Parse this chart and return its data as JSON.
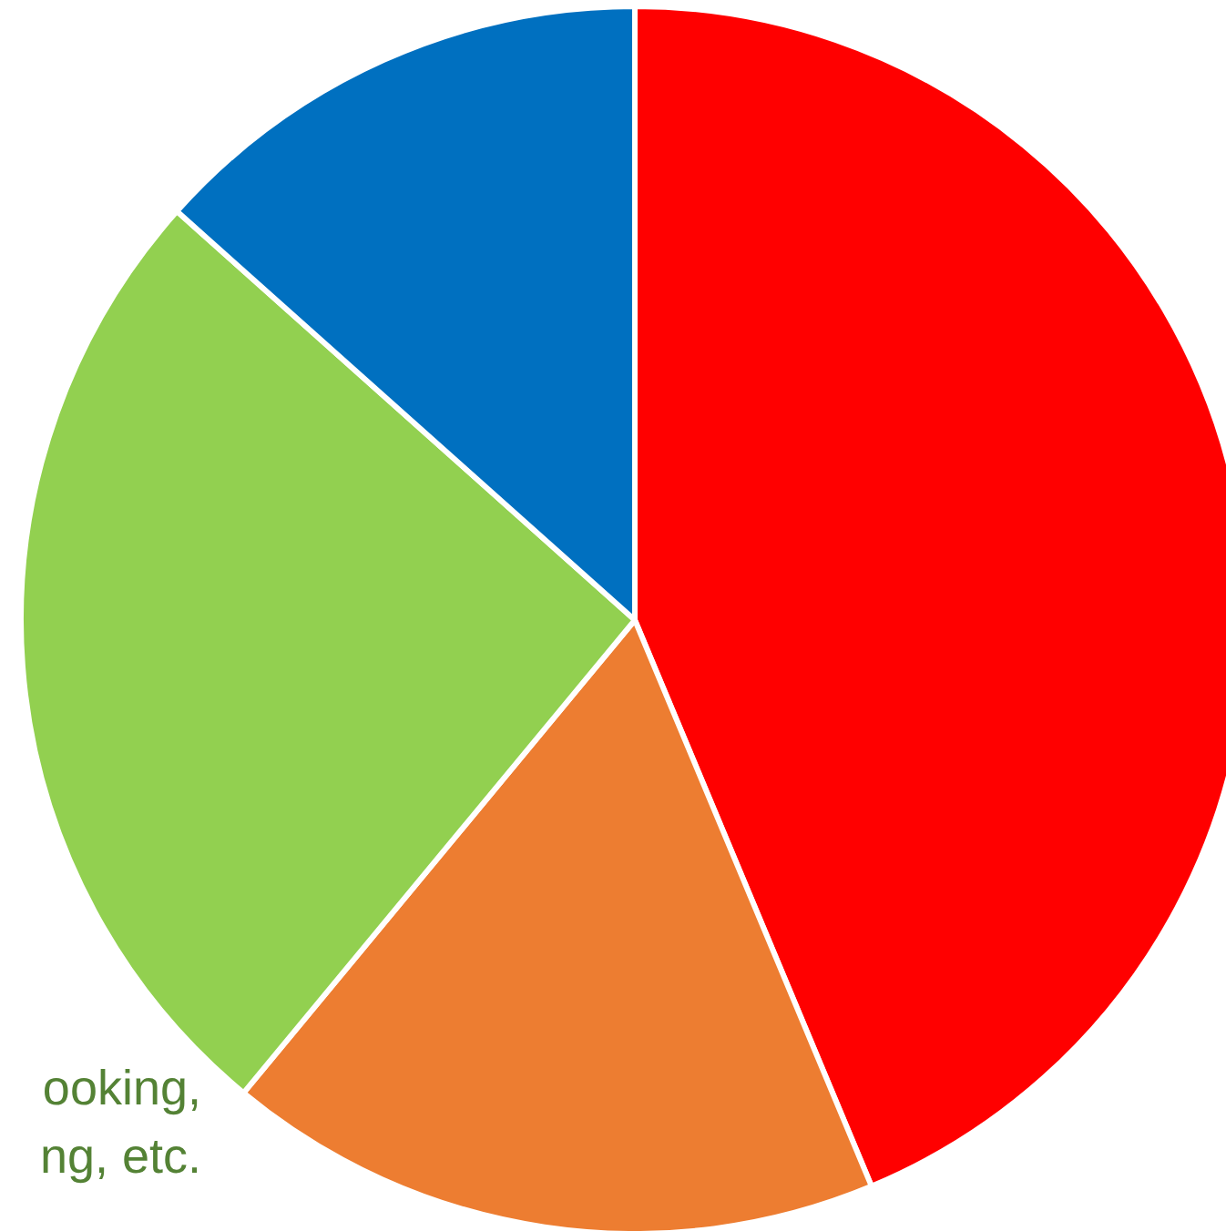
{
  "chart_data": {
    "type": "pie",
    "categories": [
      null,
      null,
      null,
      null
    ],
    "values": [
      43.7,
      17.3,
      25.6,
      13.4
    ],
    "colors": [
      "#ff0000",
      "#ed7d31",
      "#92d050",
      "#0070c0"
    ],
    "annotations": [
      "ooking,\nng, etc."
    ]
  }
}
